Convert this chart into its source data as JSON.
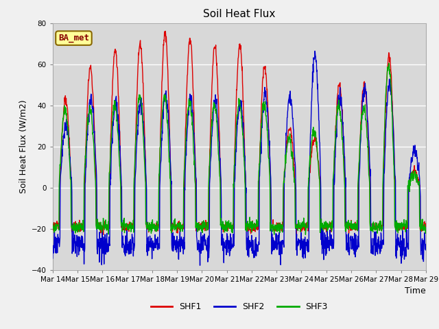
{
  "title": "Soil Heat Flux",
  "ylabel": "Soil Heat Flux (W/m2)",
  "xlabel": "Time",
  "ylim": [
    -40,
    80
  ],
  "yticks": [
    -40,
    -20,
    0,
    20,
    40,
    60,
    80
  ],
  "start_day": 14,
  "end_day": 29,
  "num_days": 15,
  "points_per_day": 96,
  "colors": {
    "SHF1": "#dd0000",
    "SHF2": "#0000cc",
    "SHF3": "#00aa00"
  },
  "annotation_text": "BA_met",
  "annotation_bg": "#ffff99",
  "annotation_border": "#886600",
  "fig_bg": "#f0f0f0",
  "plot_bg": "#d8d8d8",
  "grid_color": "#ffffff",
  "linewidth": 1.0,
  "day_peaks_shf1": [
    42,
    58,
    67,
    70,
    75,
    72,
    69,
    69,
    59,
    29,
    24,
    50,
    50,
    64,
    8
  ],
  "day_peaks_shf2": [
    30,
    43,
    41,
    41,
    45,
    43,
    41,
    41,
    45,
    45,
    65,
    44,
    49,
    51,
    18
  ],
  "day_peaks_shf3": [
    38,
    38,
    40,
    44,
    44,
    42,
    40,
    42,
    40,
    23,
    27,
    40,
    39,
    60,
    6
  ],
  "night_shf1": -19,
  "night_shf2": -28,
  "night_shf3": -19
}
